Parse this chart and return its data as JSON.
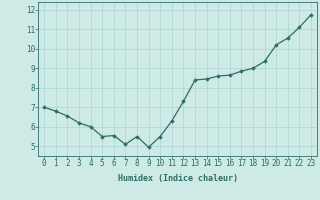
{
  "x": [
    0,
    1,
    2,
    3,
    4,
    5,
    6,
    7,
    8,
    9,
    10,
    11,
    12,
    13,
    14,
    15,
    16,
    17,
    18,
    19,
    20,
    21,
    22,
    23
  ],
  "y": [
    7.0,
    6.8,
    6.55,
    6.2,
    6.0,
    5.5,
    5.55,
    5.1,
    5.5,
    4.95,
    5.5,
    6.3,
    7.3,
    8.4,
    8.45,
    8.6,
    8.65,
    8.85,
    9.0,
    9.35,
    10.2,
    10.55,
    11.1,
    11.75
  ],
  "line_color": "#2e6e63",
  "marker": "D",
  "marker_size": 1.8,
  "bg_color": "#ceeae6",
  "grid_color": "#b0d8d3",
  "axes_color": "#2e6e63",
  "tick_color": "#2e6e63",
  "xlabel": "Humidex (Indice chaleur)",
  "xlabel_fontsize": 6.0,
  "xlabel_color": "#2e6e63",
  "ylabel_ticks": [
    5,
    6,
    7,
    8,
    9,
    10,
    11,
    12
  ],
  "xlim": [
    -0.5,
    23.5
  ],
  "ylim": [
    4.5,
    12.4
  ],
  "xticks": [
    0,
    1,
    2,
    3,
    4,
    5,
    6,
    7,
    8,
    9,
    10,
    11,
    12,
    13,
    14,
    15,
    16,
    17,
    18,
    19,
    20,
    21,
    22,
    23
  ],
  "tick_fontsize": 5.5,
  "linewidth": 0.9
}
